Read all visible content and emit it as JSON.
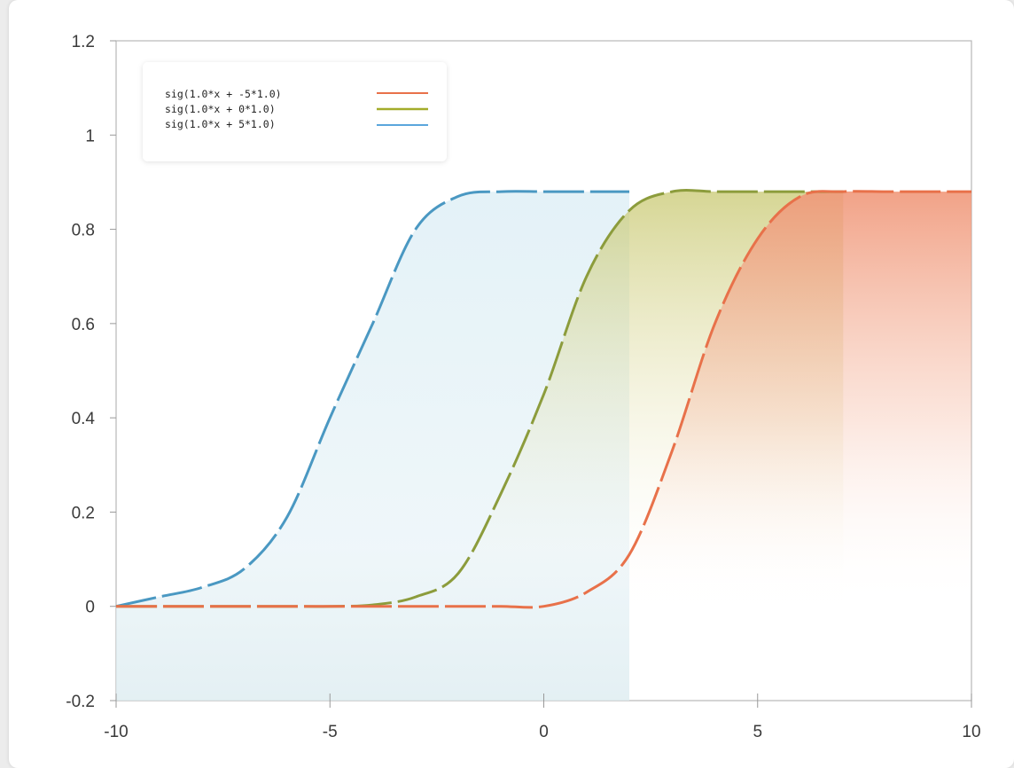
{
  "chart_data": {
    "type": "line",
    "title": "",
    "xlabel": "",
    "ylabel": "",
    "xlim": [
      -10,
      10
    ],
    "ylim": [
      -0.2,
      1.2
    ],
    "x_ticks": [
      -10,
      -5,
      0,
      5,
      10
    ],
    "x_tick_labels": [
      "-10",
      "-5",
      "0",
      "5",
      "10"
    ],
    "y_ticks": [
      -0.2,
      0,
      0.2,
      0.4,
      0.6,
      0.8,
      1,
      1.2
    ],
    "y_tick_labels": [
      "-0.2",
      "0",
      "0.2",
      "0.4",
      "0.6",
      "0.8",
      "1",
      "1.2"
    ],
    "grid": false,
    "legend_position": "top-left",
    "line_style": "dashed",
    "x": [
      -10,
      -9,
      -8,
      -7,
      -6,
      -5,
      -4,
      -3,
      -2,
      -1,
      0,
      1,
      2,
      3,
      4,
      5,
      6,
      7,
      8,
      9,
      10
    ],
    "series": [
      {
        "name": "sig(1.0*x + -5*1.0)",
        "color": "#e8714a",
        "fill": "#f0a080",
        "values": [
          0,
          0,
          0,
          0,
          0,
          0,
          0,
          0,
          0,
          0,
          0,
          0.03,
          0.11,
          0.33,
          0.6,
          0.78,
          0.87,
          0.88,
          0.88,
          0.88,
          0.88
        ]
      },
      {
        "name": "sig(1.0*x + 0*1.0)",
        "color": "#8c9c3c",
        "fill": "#c8cc70",
        "values": [
          0,
          0,
          0,
          0,
          0,
          0,
          0.003,
          0.02,
          0.07,
          0.24,
          0.45,
          0.7,
          0.84,
          0.88,
          0.88,
          0.88,
          0.88,
          0.88,
          null,
          null,
          null
        ]
      },
      {
        "name": "sig(1.0*x + 5*1.0)",
        "color": "#4a98c2",
        "fill": "#cfe6f0",
        "values": [
          0,
          0.02,
          0.04,
          0.08,
          0.19,
          0.4,
          0.6,
          0.8,
          0.87,
          0.88,
          0.88,
          0.88,
          0.88,
          null,
          null,
          null,
          null,
          null,
          null,
          null,
          null
        ]
      }
    ]
  }
}
